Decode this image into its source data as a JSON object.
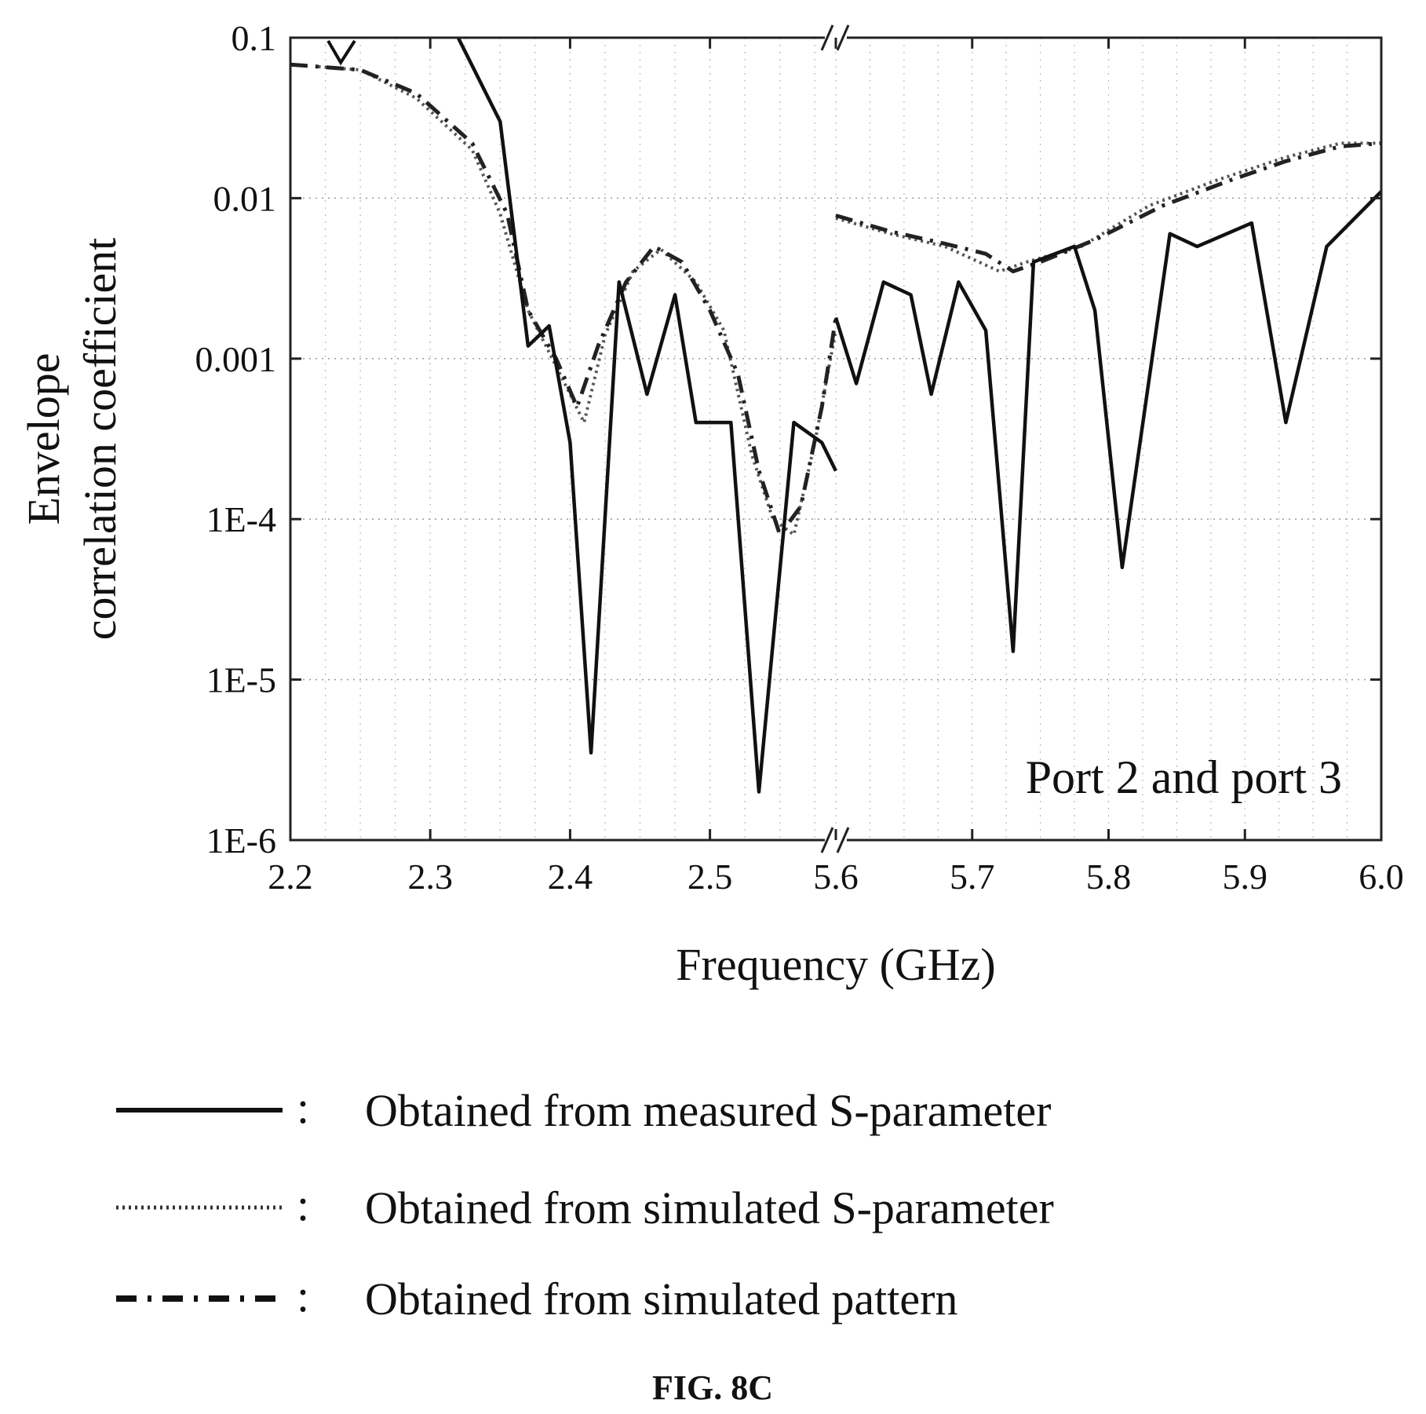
{
  "chart_data": {
    "type": "line",
    "ylabel_lines": [
      "Envelope",
      "correlation coefficient"
    ],
    "xlabel": "Frequency (GHz)",
    "annotation": "Port 2 and port 3",
    "caption": "FIG. 8C",
    "y_scale": "log",
    "ylim": [
      1e-06,
      0.1
    ],
    "y_ticks": [
      0.1,
      0.01,
      0.001,
      0.0001,
      1e-05,
      1e-06
    ],
    "y_tick_labels": [
      "0.1",
      "0.01",
      "0.001",
      "1E-4",
      "1E-5",
      "1E-6"
    ],
    "x_axis_break": true,
    "x_segments": [
      {
        "range": [
          2.2,
          2.59
        ],
        "ticks": [
          2.2,
          2.3,
          2.4,
          2.5
        ],
        "tick_labels": [
          "2.2",
          "2.3",
          "2.4",
          "2.5"
        ]
      },
      {
        "range": [
          5.6,
          6.0
        ],
        "ticks": [
          5.6,
          5.7,
          5.8,
          5.9,
          6.0
        ],
        "tick_labels": [
          "5.6",
          "5.7",
          "5.8",
          "5.9",
          "6.0"
        ]
      }
    ],
    "grid": true,
    "legend_position": "bottom",
    "series": [
      {
        "name": "Obtained from measured S-parameter",
        "style": "solid",
        "segments": [
          [
            [
              2.32,
              0.1
            ],
            [
              2.35,
              0.03
            ],
            [
              2.37,
              0.0012
            ],
            [
              2.385,
              0.0016
            ],
            [
              2.4,
              0.0003
            ],
            [
              2.415,
              3.5e-06
            ],
            [
              2.435,
              0.003
            ],
            [
              2.455,
              0.0006
            ],
            [
              2.475,
              0.0025
            ],
            [
              2.49,
              0.0004
            ],
            [
              2.515,
              0.0004
            ],
            [
              2.535,
              2e-06
            ],
            [
              2.56,
              0.0004
            ],
            [
              2.58,
              0.0003
            ],
            [
              2.59,
              0.0002
            ]
          ],
          [
            [
              5.6,
              0.0018
            ],
            [
              5.615,
              0.0007
            ],
            [
              5.635,
              0.003
            ],
            [
              5.655,
              0.0025
            ],
            [
              5.67,
              0.0006
            ],
            [
              5.69,
              0.003
            ],
            [
              5.71,
              0.0015
            ],
            [
              5.73,
              1.5e-05
            ],
            [
              5.745,
              0.004
            ],
            [
              5.775,
              0.005
            ],
            [
              5.79,
              0.002
            ],
            [
              5.81,
              5e-05
            ],
            [
              5.845,
              0.006
            ],
            [
              5.865,
              0.005
            ],
            [
              5.905,
              0.007
            ],
            [
              5.93,
              0.0004
            ],
            [
              5.96,
              0.005
            ],
            [
              6.0,
              0.011
            ]
          ]
        ]
      },
      {
        "name": "Obtained from simulated S-parameter",
        "style": "dotted",
        "segments": [
          [
            [
              2.22,
              0.066
            ],
            [
              2.25,
              0.063
            ],
            [
              2.29,
              0.042
            ],
            [
              2.33,
              0.02
            ],
            [
              2.35,
              0.008
            ],
            [
              2.37,
              0.002
            ],
            [
              2.4,
              0.0006
            ],
            [
              2.41,
              0.0004
            ],
            [
              2.425,
              0.0014
            ],
            [
              2.445,
              0.0035
            ],
            [
              2.465,
              0.0048
            ],
            [
              2.49,
              0.003
            ],
            [
              2.51,
              0.0015
            ],
            [
              2.53,
              0.00025
            ],
            [
              2.545,
              0.0001
            ],
            [
              2.56,
              8e-05
            ],
            [
              2.575,
              0.0003
            ],
            [
              2.59,
              0.0015
            ]
          ],
          [
            [
              5.6,
              0.0075
            ],
            [
              5.64,
              0.006
            ],
            [
              5.68,
              0.005
            ],
            [
              5.72,
              0.0035
            ],
            [
              5.74,
              0.004
            ],
            [
              5.78,
              0.005
            ],
            [
              5.83,
              0.009
            ],
            [
              5.88,
              0.013
            ],
            [
              5.93,
              0.018
            ],
            [
              5.97,
              0.022
            ],
            [
              6.0,
              0.022
            ]
          ]
        ]
      },
      {
        "name": "Obtained from simulated pattern",
        "style": "dashdot",
        "segments": [
          [
            [
              2.2,
              0.068
            ],
            [
              2.25,
              0.063
            ],
            [
              2.29,
              0.045
            ],
            [
              2.33,
              0.022
            ],
            [
              2.355,
              0.008
            ],
            [
              2.37,
              0.002
            ],
            [
              2.39,
              0.001
            ],
            [
              2.405,
              0.0005
            ],
            [
              2.42,
              0.0012
            ],
            [
              2.44,
              0.003
            ],
            [
              2.46,
              0.005
            ],
            [
              2.48,
              0.004
            ],
            [
              2.5,
              0.002
            ],
            [
              2.52,
              0.0008
            ],
            [
              2.535,
              0.0002
            ],
            [
              2.55,
              8e-05
            ],
            [
              2.565,
              0.00012
            ],
            [
              2.58,
              0.0005
            ],
            [
              2.59,
              0.0018
            ]
          ],
          [
            [
              5.6,
              0.0078
            ],
            [
              5.64,
              0.0062
            ],
            [
              5.68,
              0.0052
            ],
            [
              5.71,
              0.0045
            ],
            [
              5.73,
              0.0035
            ],
            [
              5.75,
              0.004
            ],
            [
              5.79,
              0.0055
            ],
            [
              5.84,
              0.009
            ],
            [
              5.89,
              0.013
            ],
            [
              5.93,
              0.017
            ],
            [
              5.97,
              0.021
            ],
            [
              6.0,
              0.022
            ]
          ]
        ]
      }
    ]
  }
}
